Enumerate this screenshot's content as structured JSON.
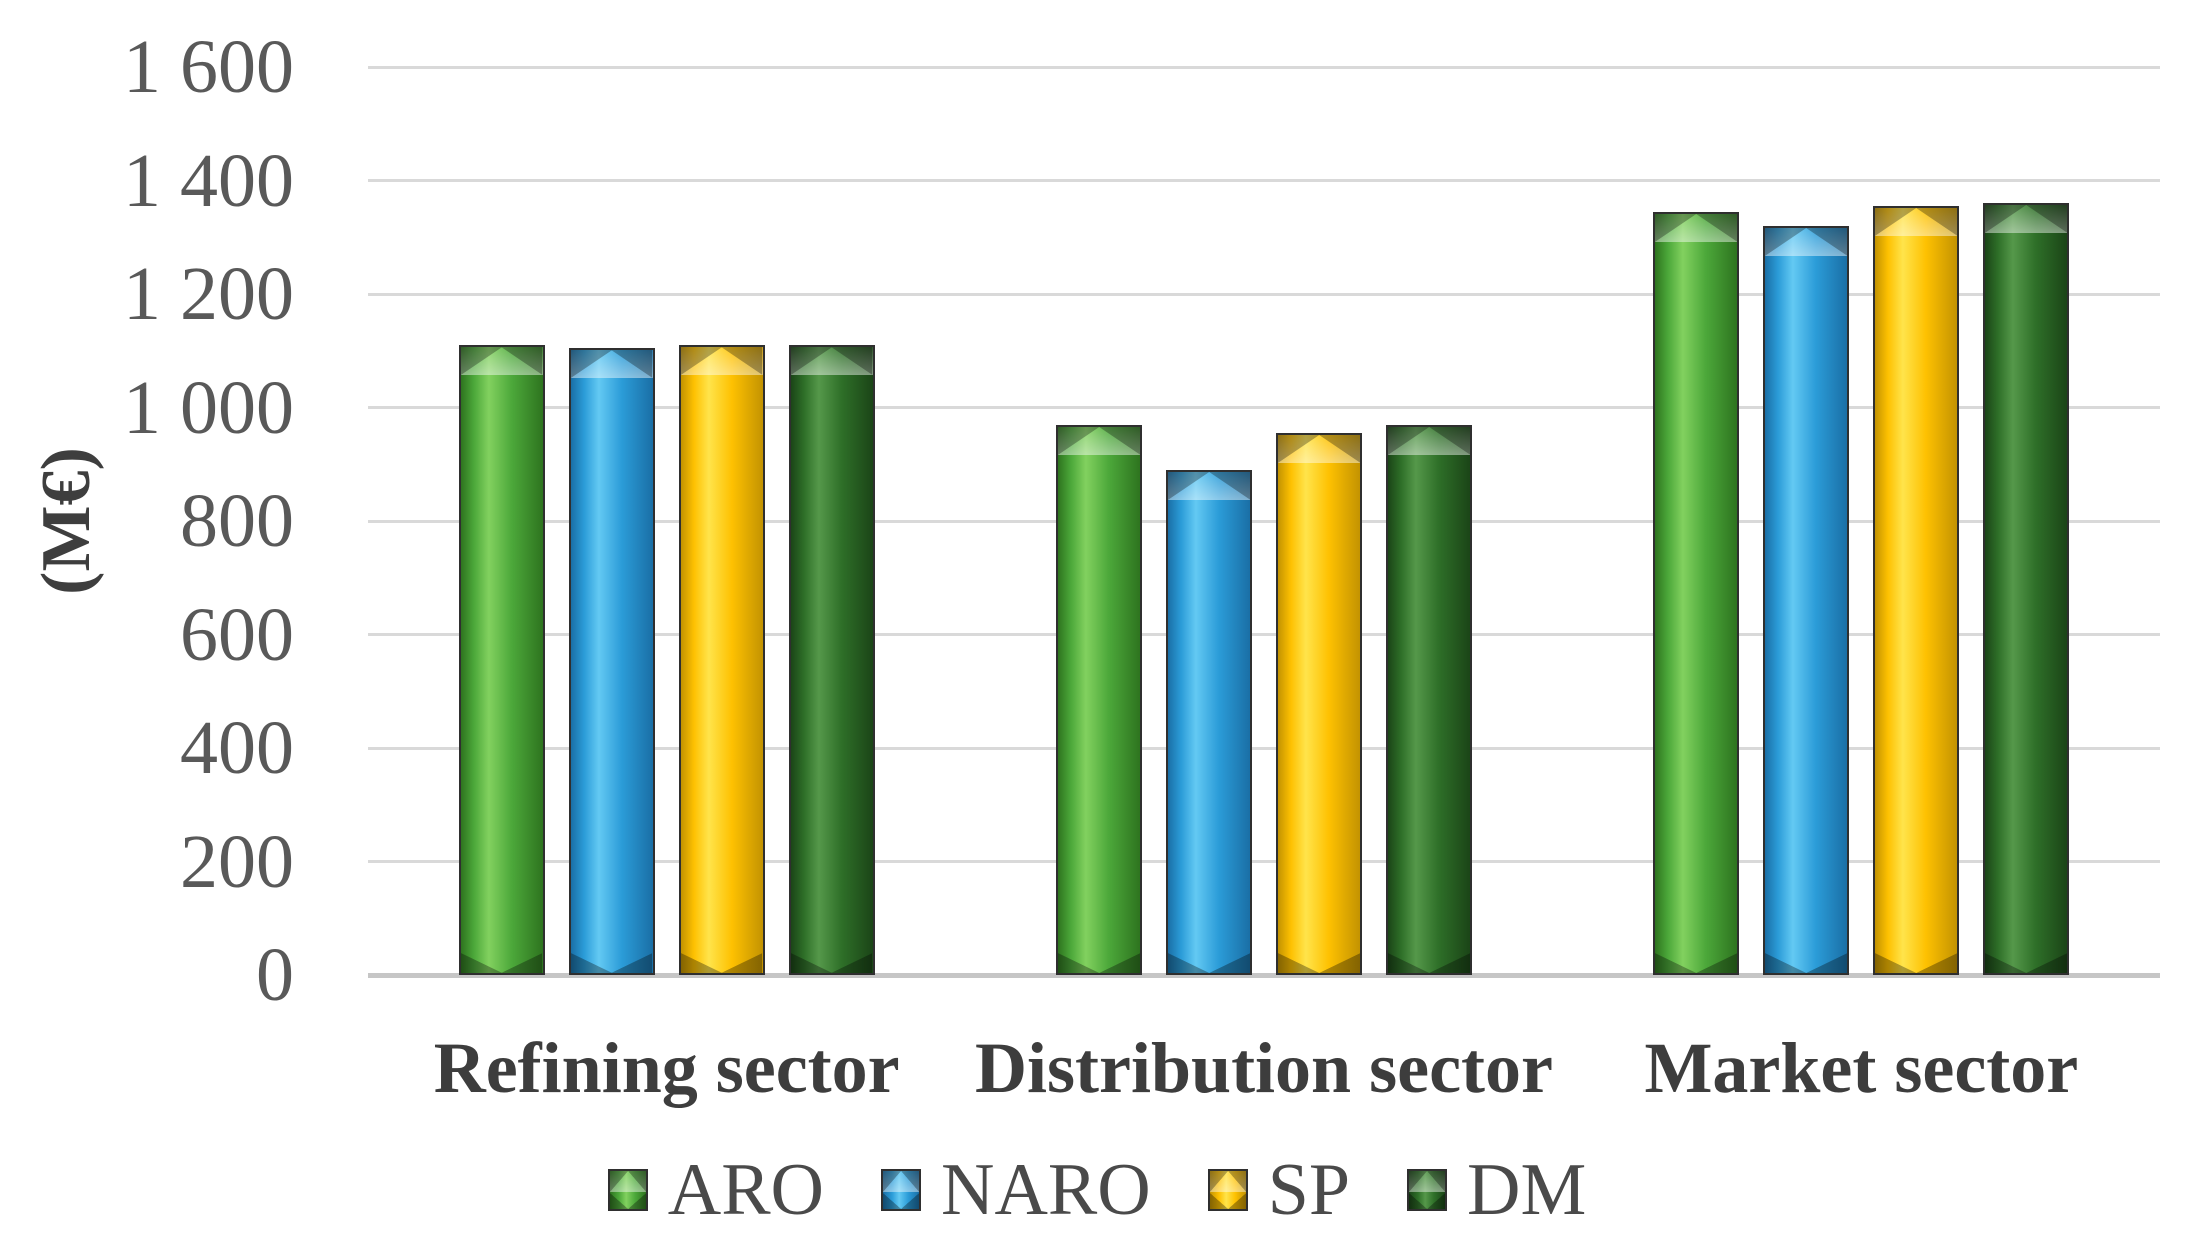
{
  "chart_data": {
    "type": "bar",
    "ylabel": "(M€)",
    "categories": [
      "Refining sector",
      "Distribution sector",
      "Market sector"
    ],
    "series": [
      {
        "name": "ARO",
        "color": "#4CA83A",
        "color_light": "#82D15F",
        "color_dark": "#2E741F",
        "values": [
          1110,
          970,
          1345
        ]
      },
      {
        "name": "NARO",
        "color": "#2B9CD8",
        "color_light": "#63C9F3",
        "color_dark": "#1A6FA6",
        "values": [
          1105,
          890,
          1320
        ]
      },
      {
        "name": "SP",
        "color": "#FEC101",
        "color_light": "#FFE44B",
        "color_dark": "#C39301",
        "values": [
          1110,
          955,
          1355
        ]
      },
      {
        "name": "DM",
        "color": "#2E6F28",
        "color_light": "#55984A",
        "color_dark": "#1B4517",
        "values": [
          1110,
          970,
          1360
        ]
      }
    ],
    "ylim": [
      0,
      1600
    ],
    "ytick_step": 200,
    "ytick_labels": [
      "0",
      "200",
      "400",
      "600",
      "800",
      "1 000",
      "1 200",
      "1 400",
      "1 600"
    ],
    "grid": true,
    "legend_position": "bottom"
  }
}
